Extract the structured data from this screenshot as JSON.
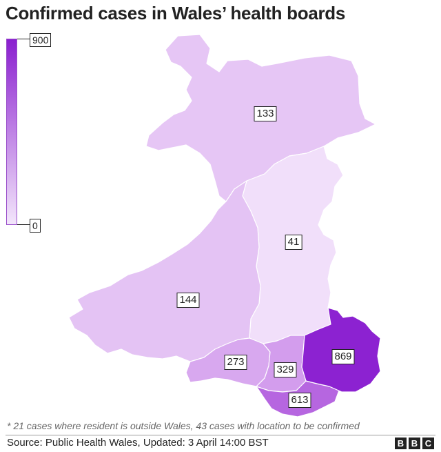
{
  "title": "Confirmed cases in Wales’ health boards",
  "legend": {
    "max": "900",
    "min": "0",
    "color_low": "#f3e6fb",
    "color_high": "#8a1fcf"
  },
  "regions": [
    {
      "id": "north",
      "value": "133",
      "color": "#e6c6f5"
    },
    {
      "id": "powys",
      "value": "41",
      "color": "#f1dffa"
    },
    {
      "id": "west",
      "value": "144",
      "color": "#e4c3f4"
    },
    {
      "id": "swansea",
      "value": "273",
      "color": "#d8a8ef"
    },
    {
      "id": "cwm-taf",
      "value": "329",
      "color": "#d39ded"
    },
    {
      "id": "cardiff",
      "value": "613",
      "color": "#b666e0"
    },
    {
      "id": "gwent",
      "value": "869",
      "color": "#8c22d1"
    }
  ],
  "footnote": "* 21 cases where resident is outside Wales, 43 cases with location to be confirmed",
  "source": "Source: Public Health Wales, Updated: 3 April 14:00 BST",
  "logo": [
    "B",
    "B",
    "C"
  ]
}
